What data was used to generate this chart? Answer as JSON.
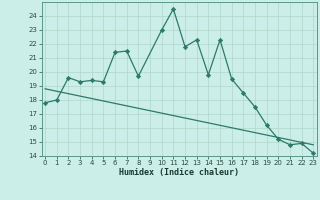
{
  "xlabel": "Humidex (Indice chaleur)",
  "background_color": "#cceee8",
  "grid_color": "#b0d8cc",
  "line_color": "#2d7a6a",
  "line1_x": [
    0,
    1,
    2,
    3,
    4,
    5,
    6,
    7,
    8,
    10,
    11,
    12,
    13,
    14,
    15,
    16,
    17,
    18,
    19,
    20,
    21,
    22,
    23
  ],
  "line1_y": [
    17.8,
    18.0,
    19.6,
    19.3,
    19.4,
    19.3,
    21.4,
    21.5,
    19.7,
    23.0,
    24.5,
    21.8,
    22.3,
    19.8,
    22.3,
    19.5,
    18.5,
    17.5,
    16.2,
    15.2,
    14.8,
    14.9,
    14.2
  ],
  "line2_x": [
    0,
    23
  ],
  "line2_y": [
    18.8,
    14.8
  ],
  "ylim": [
    14,
    25
  ],
  "xlim": [
    -0.3,
    23.3
  ],
  "yticks": [
    14,
    15,
    16,
    17,
    18,
    19,
    20,
    21,
    22,
    23,
    24
  ],
  "xticks": [
    0,
    1,
    2,
    3,
    4,
    5,
    6,
    7,
    8,
    9,
    10,
    11,
    12,
    13,
    14,
    15,
    16,
    17,
    18,
    19,
    20,
    21,
    22,
    23
  ],
  "marker": "D",
  "marker_size": 2.2,
  "line_width": 0.9,
  "tick_fontsize": 5.0,
  "xlabel_fontsize": 6.0
}
